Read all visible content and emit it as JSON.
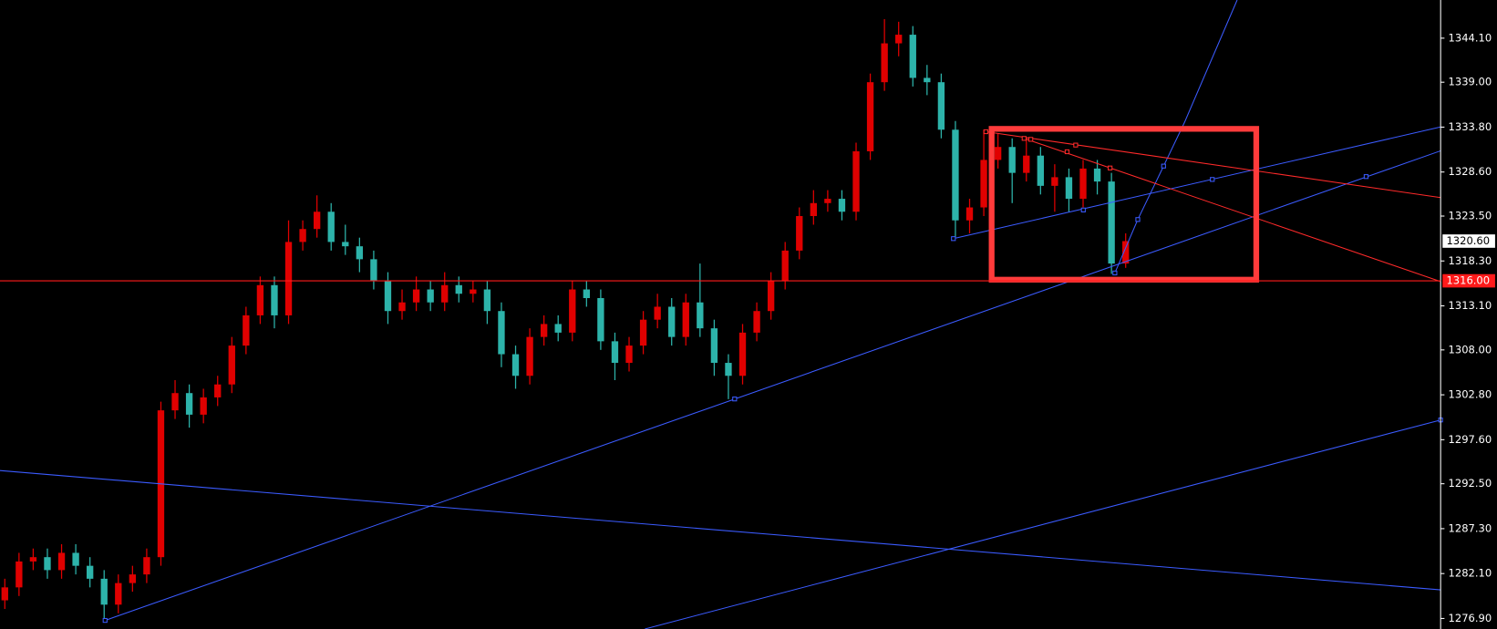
{
  "chart_data": {
    "type": "candlestick",
    "up_color": "#e00000",
    "down_color": "#2db3aa",
    "axis_color": "#ffffff",
    "xlim": [
      -0.34,
      101.2
    ],
    "ylim": [
      1275.68,
      1348.52
    ],
    "yticks": [
      {
        "value": 1344.1,
        "label": "1344.10"
      },
      {
        "value": 1339,
        "label": "1339.00"
      },
      {
        "value": 1333.8,
        "label": "1333.80"
      },
      {
        "value": 1328.6,
        "label": "1328.60"
      },
      {
        "value": 1323.5,
        "label": "1323.50"
      },
      {
        "value": 1318.3,
        "label": "1318.30"
      },
      {
        "value": 1313.1,
        "label": "1313.10"
      },
      {
        "value": 1308,
        "label": "1308.00"
      },
      {
        "value": 1302.8,
        "label": "1302.80"
      },
      {
        "value": 1297.6,
        "label": "1297.60"
      },
      {
        "value": 1292.5,
        "label": "1292.50"
      },
      {
        "value": 1287.3,
        "label": "1287.30"
      },
      {
        "value": 1282.1,
        "label": "1282.10"
      },
      {
        "value": 1276.9,
        "label": "1276.90"
      }
    ],
    "current_price": {
      "value": 1320.6,
      "label": "1320.60"
    },
    "price_line": {
      "value": 1316,
      "label": "1316.00",
      "color": "#ff1a1a"
    },
    "open": [
      1279.0,
      1280.5,
      1283.5,
      1284.0,
      1282.5,
      1284.5,
      1283.0,
      1281.5,
      1278.5,
      1281.0,
      1282.0,
      1284.0,
      1301.0,
      1303.0,
      1300.5,
      1302.5,
      1304.0,
      1308.5,
      1312.0,
      1315.5,
      1312.0,
      1320.5,
      1322.0,
      1324.0,
      1320.5,
      1320.0,
      1318.5,
      1316.0,
      1312.5,
      1313.5,
      1315.0,
      1313.5,
      1315.5,
      1314.5,
      1315.0,
      1312.5,
      1307.5,
      1305.0,
      1309.5,
      1311.0,
      1310.0,
      1315.0,
      1314.0,
      1309.0,
      1306.5,
      1308.5,
      1311.5,
      1313.0,
      1309.5,
      1313.5,
      1310.5,
      1306.5,
      1305.0,
      1310.0,
      1312.5,
      1316.0,
      1319.5,
      1323.5,
      1325.0,
      1325.5,
      1324.0,
      1331.0,
      1339.0,
      1343.5,
      1344.5,
      1339.5,
      1339.0,
      1333.5,
      1323.0,
      1324.5,
      1330.0,
      1331.5,
      1328.5,
      1330.5,
      1327.0,
      1328.0,
      1325.5,
      1329.0,
      1327.5,
      1318.0
    ],
    "high": [
      1281.5,
      1284.5,
      1285.0,
      1285.0,
      1285.5,
      1285.5,
      1284.0,
      1282.5,
      1282.0,
      1283.0,
      1285.0,
      1302.0,
      1304.5,
      1304.0,
      1303.5,
      1305.0,
      1309.5,
      1313.0,
      1316.5,
      1316.5,
      1323.0,
      1323.0,
      1325.9,
      1325.0,
      1322.5,
      1321.0,
      1319.5,
      1317.0,
      1315.0,
      1316.5,
      1316.0,
      1317.0,
      1316.5,
      1316.0,
      1316.0,
      1313.5,
      1308.5,
      1310.5,
      1312.0,
      1312.0,
      1316.0,
      1316.0,
      1315.0,
      1310.0,
      1309.5,
      1312.5,
      1314.5,
      1314.0,
      1314.5,
      1318.0,
      1311.5,
      1307.5,
      1311.0,
      1313.5,
      1317.0,
      1320.5,
      1324.5,
      1326.5,
      1326.5,
      1326.5,
      1332.0,
      1340.0,
      1346.3,
      1346.0,
      1345.5,
      1341.0,
      1340.0,
      1334.5,
      1325.5,
      1333.5,
      1333.0,
      1332.5,
      1332.5,
      1331.5,
      1329.5,
      1329.0,
      1330.0,
      1330.0,
      1328.5,
      1321.5
    ],
    "low": [
      1278.0,
      1279.5,
      1282.5,
      1281.5,
      1281.5,
      1282.0,
      1280.5,
      1276.7,
      1277.5,
      1280.0,
      1281.0,
      1283.0,
      1300.0,
      1299.0,
      1299.5,
      1301.5,
      1303.0,
      1307.5,
      1311.0,
      1310.5,
      1311.0,
      1319.5,
      1321.0,
      1319.5,
      1319.0,
      1317.0,
      1315.0,
      1311.0,
      1311.5,
      1312.5,
      1312.5,
      1312.5,
      1313.5,
      1313.5,
      1311.0,
      1306.0,
      1303.5,
      1304.0,
      1308.5,
      1309.0,
      1309.0,
      1313.0,
      1308.0,
      1304.5,
      1305.5,
      1307.5,
      1310.5,
      1308.5,
      1308.5,
      1309.5,
      1305.0,
      1302.3,
      1304.0,
      1309.0,
      1311.5,
      1315.0,
      1318.5,
      1322.5,
      1324.0,
      1323.0,
      1323.0,
      1330.0,
      1338.0,
      1342.0,
      1338.5,
      1337.5,
      1332.5,
      1321.0,
      1321.5,
      1323.5,
      1329.0,
      1325.0,
      1327.5,
      1326.0,
      1324.0,
      1324.0,
      1324.5,
      1326.0,
      1316.8,
      1317.5
    ],
    "close": [
      1280.5,
      1283.5,
      1284.0,
      1282.5,
      1284.5,
      1283.0,
      1281.5,
      1278.5,
      1281.0,
      1282.0,
      1284.0,
      1301.0,
      1303.0,
      1300.5,
      1302.5,
      1304.0,
      1308.5,
      1312.0,
      1315.5,
      1312.0,
      1320.5,
      1322.0,
      1324.0,
      1320.5,
      1320.0,
      1318.5,
      1316.0,
      1312.5,
      1313.5,
      1315.0,
      1313.5,
      1315.5,
      1314.5,
      1315.0,
      1312.5,
      1307.5,
      1305.0,
      1309.5,
      1311.0,
      1310.0,
      1315.0,
      1314.0,
      1309.0,
      1306.5,
      1308.5,
      1311.5,
      1313.0,
      1309.5,
      1313.5,
      1310.5,
      1306.5,
      1305.0,
      1310.0,
      1312.5,
      1316.0,
      1319.5,
      1323.5,
      1325.0,
      1325.5,
      1324.0,
      1331.0,
      1339.0,
      1343.5,
      1344.5,
      1339.5,
      1339.0,
      1333.5,
      1323.0,
      1324.5,
      1330.0,
      1331.5,
      1328.5,
      1330.5,
      1327.0,
      1328.0,
      1325.5,
      1329.0,
      1327.5,
      1318.0,
      1320.6
    ]
  }
}
